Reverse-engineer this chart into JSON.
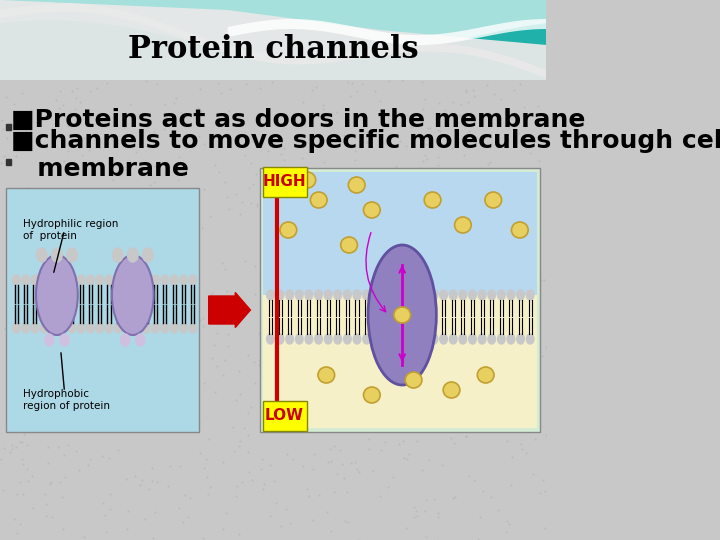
{
  "title": "Protein channels",
  "bullet1": "■Proteins act as doors in the membrane",
  "bullet2": "■channels to move specific molecules through cell\n   membrane",
  "bg_color": "#c8c8c8",
  "header_bg": "#20b2aa",
  "title_color": "#000000",
  "title_fontsize": 22,
  "bullet_fontsize": 18,
  "high_label": "HIGH",
  "low_label": "LOW",
  "high_color": "#ffff00",
  "low_color": "#ffff00",
  "high_text_color": "#cc0000",
  "low_text_color": "#cc0000",
  "arrow_color": "#cc0000",
  "left_img_label1": "Hydrophilic region\nof  protein",
  "left_img_label2": "Hydrophobic\nregion of protein",
  "left_bg": "#add8e6",
  "right_bg": "#e8f4e8"
}
